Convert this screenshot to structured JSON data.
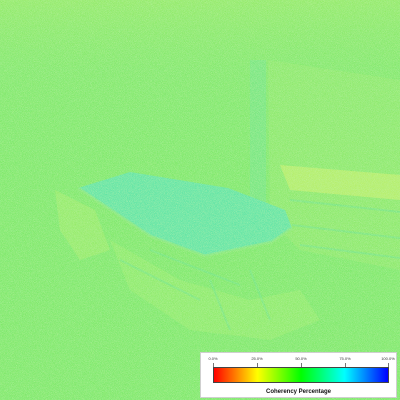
{
  "image": {
    "description_colors": {
      "base": "#7fe86a",
      "green_light": "#9ef06a",
      "yellow_green": "#c9f06a",
      "teal": "#5ee4a5",
      "cyan_teal": "#63e6b8"
    },
    "legend": {
      "title": "Coherency Percentage",
      "ticks": [
        "0.0%",
        "25.0%",
        "50.0%",
        "75.0%",
        "100.0%"
      ],
      "tick_values": [
        0,
        25,
        50,
        75,
        100
      ],
      "gradient_colors": [
        "#ff0000",
        "#ffff00",
        "#00ff00",
        "#00ffff",
        "#0000ff"
      ]
    }
  }
}
